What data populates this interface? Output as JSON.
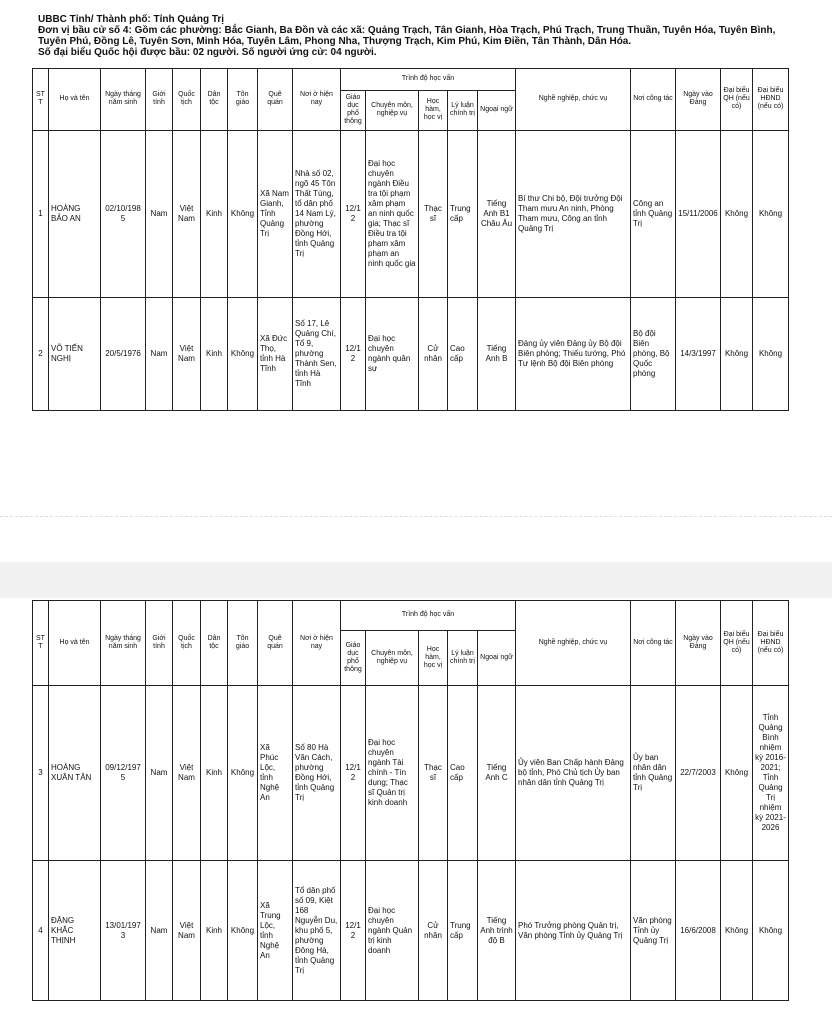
{
  "header": {
    "title": "UBBC Tỉnh/ Thành phố: Tỉnh Quảng Trị",
    "unit": "Đơn vị bầu cử số 4: Gồm các phường: Bắc Gianh, Ba Đồn và các xã: Quảng Trạch, Tân Gianh, Hòa Trạch, Phú Trạch, Trung Thuần, Tuyên Hóa, Tuyên Bình, Tuyên Phú, Đồng Lê, Tuyên Sơn, Minh Hóa, Tuyên Lâm, Phong Nha, Thượng Trạch, Kim Phú, Kim Điền, Tân Thành, Dân Hóa.",
    "seats": "Số đại biểu Quốc hội được bầu: 02 người. Số người ứng cử: 04 người."
  },
  "table": {
    "columns_before": [
      "ST T",
      "Họ và tên",
      "Ngày tháng năm sinh",
      "Giới tính",
      "Quốc tịch",
      "Dân tộc",
      "Tôn giáo",
      "Quê quán",
      "Nơi ở hiện nay"
    ],
    "group": "Trình độ học vấn",
    "group_columns": [
      "Giáo dục phổ thông",
      "Chuyên môn, nghiệp vụ",
      "Học hàm, học vị",
      "Lý luận chính trị",
      "Ngoại ngữ"
    ],
    "columns_after": [
      "Nghề nghiệp, chức vụ",
      "Nơi công tác",
      "Ngày vào Đảng",
      "Đại biểu QH (nếu có)",
      "Đại biểu HĐND (nếu có)"
    ],
    "pages": [
      {
        "rows": [
          [
            "1",
            "HOÀNG BẢO AN",
            "02/10/1985",
            "Nam",
            "Việt Nam",
            "Kinh",
            "Không",
            "Xã Nam Gianh, Tỉnh Quảng Trị",
            "Nhà số 02, ngõ 45 Tôn Thất Tùng, tổ dân phố 14 Nam Lý, phường Đồng Hới, tỉnh Quảng Trị",
            "12/12",
            "Đại học chuyên ngành Điều tra tội phạm xâm phạm an ninh quốc gia; Thạc sĩ Điều tra tội phạm xâm phạm an ninh quốc gia",
            "Thạc sĩ",
            "Trung cấp",
            "Tiếng Anh B1 Châu Âu",
            "Bí thư Chi bộ, Đội trưởng Đội Tham mưu An ninh, Phòng Tham mưu, Công an tỉnh Quảng Trị",
            "Công an tỉnh Quảng Trị",
            "15/11/2006",
            "Không",
            "Không"
          ],
          [
            "2",
            "VÕ TIẾN NGHỊ",
            "20/5/1976",
            "Nam",
            "Việt Nam",
            "Kinh",
            "Không",
            "Xã Đức Thọ, tỉnh Hà Tĩnh",
            "Số 17, Lê Quảng Chí, Tổ 9, phường Thành Sen, tỉnh Hà Tĩnh",
            "12/12",
            "Đại học chuyên ngành quân sự",
            "Cử nhân",
            "Cao cấp",
            "Tiếng Anh B",
            "Đảng ủy viên Đảng ủy Bộ đội Biên phòng; Thiếu tướng, Phó Tư lệnh Bộ đội Biên phòng",
            "Bộ đội Biên phòng, Bộ Quốc phòng",
            "14/3/1997",
            "Không",
            "Không"
          ]
        ]
      },
      {
        "rows": [
          [
            "3",
            "HOÀNG XUÂN TÂN",
            "09/12/1975",
            "Nam",
            "Việt Nam",
            "Kinh",
            "Không",
            "Xã Phúc Lộc, tỉnh Nghệ An",
            "Số 80 Hà Văn Cách, phường Đồng Hới, tỉnh Quảng Trị",
            "12/12",
            "Đại học chuyên ngành Tài chính - Tín dụng; Thạc sĩ Quản trị kinh doanh",
            "Thạc sĩ",
            "Cao cấp",
            "Tiếng Anh C",
            "Ủy viên Ban Chấp hành Đảng bộ tỉnh, Phó Chủ tịch Ủy ban nhân dân tỉnh Quảng Trị",
            "Ủy ban nhân dân tỉnh Quảng Trị",
            "22/7/2003",
            "Không",
            "Tỉnh Quảng Bình nhiệm kỳ 2016-2021; Tỉnh Quảng Trị nhiệm kỳ 2021-2026"
          ],
          [
            "4",
            "ĐẶNG KHẮC THỊNH",
            "13/01/1973",
            "Nam",
            "Việt Nam",
            "Kinh",
            "Không",
            "Xã Trung Lộc, tỉnh Nghệ An",
            "Tổ dân phố số 09, Kiệt 168 Nguyễn Du, khu phố 5, phường Đông Hà, tỉnh Quảng Trị",
            "12/12",
            "Đại học chuyên ngành Quản trị kinh doanh",
            "Cử nhân",
            "Trung cấp",
            "Tiếng Anh trình độ B",
            "Phó Trưởng phòng Quản trị, Văn phòng Tỉnh ủy Quảng Trị",
            "Văn phòng Tỉnh ủy Quảng Trị",
            "16/6/2008",
            "Không",
            "Không"
          ]
        ]
      }
    ]
  }
}
